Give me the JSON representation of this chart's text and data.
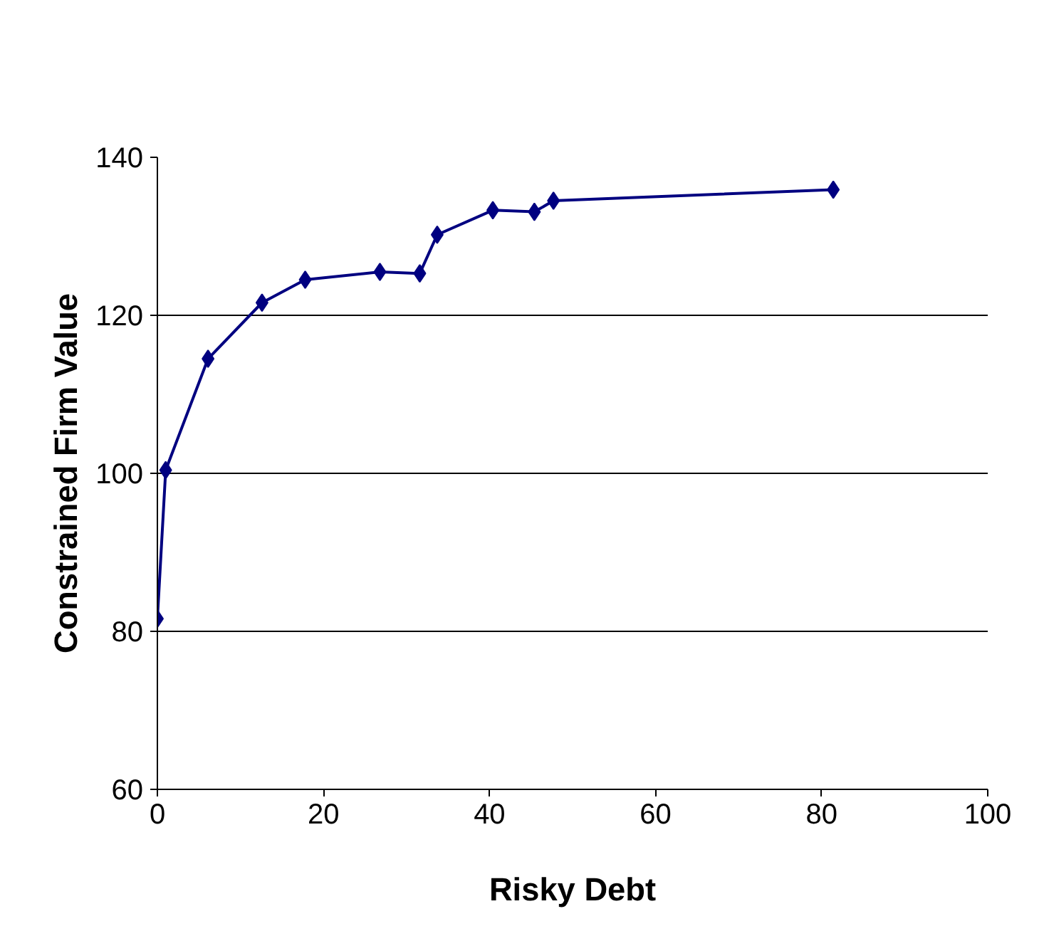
{
  "chart_data": {
    "type": "line",
    "xlabel": "Risky Debt",
    "ylabel": "Constrained Firm Value",
    "x": [
      0,
      1.0,
      6.1,
      12.6,
      17.8,
      26.8,
      31.6,
      33.7,
      40.4,
      45.4,
      47.7,
      81.4
    ],
    "series": [
      {
        "color": "#000080",
        "values": [
          81.6,
          100.4,
          114.5,
          121.6,
          124.5,
          125.5,
          125.3,
          130.2,
          133.3,
          133.1,
          134.5,
          135.9
        ]
      }
    ],
    "xlim": [
      0,
      100
    ],
    "xticks": [
      0,
      20,
      40,
      60,
      80,
      100
    ],
    "ylim": [
      60,
      140
    ],
    "yticks": [
      60,
      80,
      100,
      120,
      140
    ],
    "grid": "y",
    "marker": "diamond",
    "line_style": "solid"
  }
}
